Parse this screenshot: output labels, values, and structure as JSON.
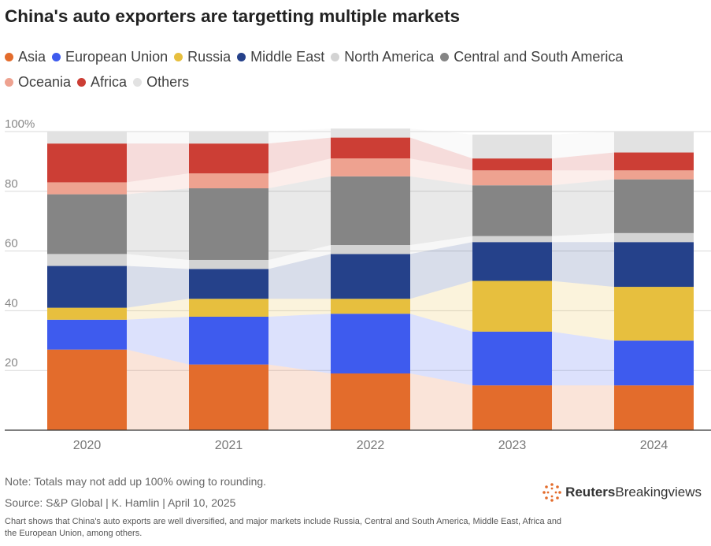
{
  "title": "China's auto exporters are targetting multiple markets",
  "legend": [
    {
      "label": "Asia",
      "color": "#e36c2c"
    },
    {
      "label": "European Union",
      "color": "#3e5bee"
    },
    {
      "label": "Russia",
      "color": "#e7bf3e"
    },
    {
      "label": "Middle East",
      "color": "#25418a"
    },
    {
      "label": "North America",
      "color": "#d3d3d3"
    },
    {
      "label": "Central and South America",
      "color": "#858585"
    },
    {
      "label": "Oceania",
      "color": "#eea290"
    },
    {
      "label": "Africa",
      "color": "#cc3e35"
    },
    {
      "label": "Others",
      "color": "#e2e2e2"
    }
  ],
  "chart_data": {
    "type": "bar",
    "stacked": true,
    "categories": [
      "2020",
      "2021",
      "2022",
      "2023",
      "2024"
    ],
    "yticks": [
      "20",
      "40",
      "60",
      "80",
      "100%"
    ],
    "ylim": [
      0,
      100
    ],
    "grid": true,
    "legend_position": "top",
    "series": [
      {
        "name": "Asia",
        "color": "#e36c2c",
        "values": [
          27,
          22,
          19,
          15,
          15
        ]
      },
      {
        "name": "European Union",
        "color": "#3e5bee",
        "values": [
          10,
          16,
          20,
          18,
          15
        ]
      },
      {
        "name": "Russia",
        "color": "#e7bf3e",
        "values": [
          4,
          6,
          5,
          17,
          18
        ]
      },
      {
        "name": "Middle East",
        "color": "#25418a",
        "values": [
          14,
          10,
          15,
          13,
          15
        ]
      },
      {
        "name": "North America",
        "color": "#d3d3d3",
        "values": [
          4,
          3,
          3,
          2,
          3
        ]
      },
      {
        "name": "Central and South America",
        "color": "#858585",
        "values": [
          20,
          24,
          23,
          17,
          18
        ]
      },
      {
        "name": "Oceania",
        "color": "#eea290",
        "values": [
          4,
          5,
          6,
          5,
          3
        ]
      },
      {
        "name": "Africa",
        "color": "#cc3e35",
        "values": [
          13,
          10,
          7,
          4,
          6
        ]
      },
      {
        "name": "Others",
        "color": "#e2e2e2",
        "values": [
          4,
          4,
          3,
          8,
          7
        ]
      }
    ]
  },
  "footer": {
    "note": "Note: Totals may not add up 100% owing to rounding.",
    "source": "Source: S&P Global | K. Hamlin | April 10, 2025",
    "description": "Chart shows that China's auto exports are well diversified, and major markets include Russia, Central and South America, Middle East, Africa and the European Union, among others."
  },
  "brand": {
    "name": "Reuters",
    "suffix": "Breakingviews"
  }
}
